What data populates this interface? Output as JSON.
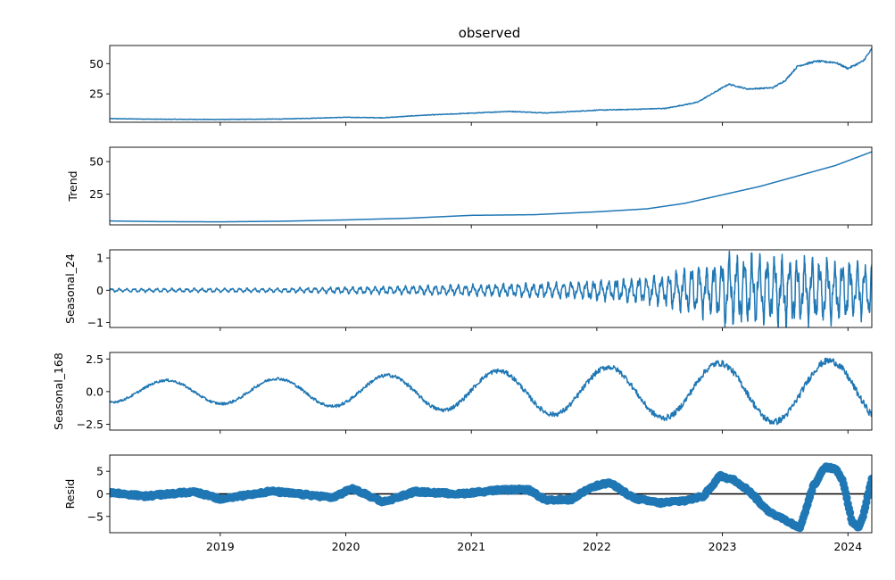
{
  "chart_data": {
    "type": "line",
    "figure_title": "observed",
    "x_range": [
      2018.12,
      2024.19
    ],
    "x_ticks": [
      2019,
      2020,
      2021,
      2022,
      2023,
      2024
    ],
    "x_tick_labels": [
      "2019",
      "2020",
      "2021",
      "2022",
      "2023",
      "2024"
    ],
    "color": "#1f77b4",
    "panels": [
      {
        "id": "observed",
        "ylabel": "",
        "ylim": [
          1.5,
          65
        ],
        "yticks": [
          25,
          50
        ],
        "ytick_labels": [
          "25",
          "50"
        ],
        "style": "line",
        "x": [
          2018.12,
          2018.5,
          2019.0,
          2019.5,
          2020.0,
          2020.3,
          2020.6,
          2021.0,
          2021.3,
          2021.6,
          2022.0,
          2022.3,
          2022.55,
          2022.8,
          2022.95,
          2023.05,
          2023.2,
          2023.4,
          2023.5,
          2023.6,
          2023.75,
          2023.9,
          2024.0,
          2024.12,
          2024.19
        ],
        "values": [
          4.5,
          4.0,
          3.8,
          4.2,
          5.6,
          5.2,
          7.2,
          9.0,
          10.5,
          9.2,
          11.5,
          12.2,
          13.0,
          18.0,
          27.0,
          33.0,
          29.0,
          30.0,
          36.0,
          48.0,
          52.0,
          51.0,
          46.0,
          52.0,
          62.0
        ],
        "noise": 1.0
      },
      {
        "id": "trend",
        "ylabel": "Trend",
        "ylim": [
          1.5,
          61
        ],
        "yticks": [
          25,
          50
        ],
        "ytick_labels": [
          "25",
          "50"
        ],
        "style": "line",
        "x": [
          2018.12,
          2018.5,
          2019.0,
          2019.5,
          2020.0,
          2020.5,
          2021.0,
          2021.5,
          2022.0,
          2022.4,
          2022.7,
          2023.0,
          2023.3,
          2023.6,
          2023.9,
          2024.19
        ],
        "values": [
          4.5,
          4.0,
          3.8,
          4.3,
          5.3,
          6.6,
          8.8,
          9.3,
          11.5,
          13.8,
          18.0,
          24.5,
          31.0,
          39.0,
          47.0,
          57.5
        ],
        "noise": 0
      },
      {
        "id": "seasonal24",
        "ylabel": "Seasonal_24",
        "ylim": [
          -1.15,
          1.25
        ],
        "yticks": [
          -1,
          0,
          1
        ],
        "ytick_labels": [
          "−1",
          "0",
          "1"
        ],
        "style": "oscillation",
        "period_years": 0.06,
        "amplitude_env": {
          "x": [
            2018.12,
            2019.5,
            2020.5,
            2021.5,
            2022.0,
            2022.5,
            2022.8,
            2023.0,
            2023.5,
            2024.19
          ],
          "values": [
            0.04,
            0.05,
            0.1,
            0.16,
            0.22,
            0.35,
            0.55,
            0.75,
            0.8,
            0.62
          ]
        }
      },
      {
        "id": "seasonal168",
        "ylabel": "Seasonal_168",
        "ylim": [
          -2.95,
          3.0
        ],
        "yticks": [
          -2.5,
          0.0,
          2.5
        ],
        "ytick_labels": [
          "−2.5",
          "0.0",
          "2.5"
        ],
        "style": "oscillation",
        "period_years": 0.88,
        "phase_year": 2018.35,
        "amplitude_env": {
          "x": [
            2018.12,
            2019.5,
            2020.5,
            2021.5,
            2022.5,
            2023.3,
            2024.19
          ],
          "values": [
            0.8,
            1.0,
            1.3,
            1.7,
            2.0,
            2.3,
            2.4
          ]
        }
      },
      {
        "id": "resid",
        "ylabel": "Resid",
        "ylim": [
          -8.6,
          8.6
        ],
        "yticks": [
          -5,
          0,
          5
        ],
        "ytick_labels": [
          "−5",
          "0",
          "5"
        ],
        "style": "scatter",
        "zero_line": true,
        "x": [
          2018.12,
          2018.4,
          2018.8,
          2019.0,
          2019.4,
          2019.9,
          2020.05,
          2020.3,
          2020.55,
          2020.9,
          2021.2,
          2021.45,
          2021.6,
          2021.8,
          2021.95,
          2022.1,
          2022.3,
          2022.5,
          2022.7,
          2022.85,
          2022.98,
          2023.1,
          2023.22,
          2023.35,
          2023.48,
          2023.62,
          2023.72,
          2023.82,
          2023.9,
          2023.96,
          2024.03,
          2024.08,
          2024.12,
          2024.19
        ],
        "values": [
          0.3,
          -0.5,
          0.5,
          -1.2,
          0.6,
          -0.8,
          1.2,
          -1.8,
          0.5,
          0.0,
          0.8,
          1.0,
          -1.5,
          -1.2,
          1.5,
          2.5,
          -1.0,
          -2.0,
          -1.5,
          -0.5,
          4.0,
          3.0,
          0.5,
          -3.5,
          -5.5,
          -7.5,
          1.5,
          6.0,
          5.5,
          3.0,
          -6.0,
          -7.5,
          -5.0,
          3.5
        ],
        "noise": 0.5
      }
    ]
  }
}
